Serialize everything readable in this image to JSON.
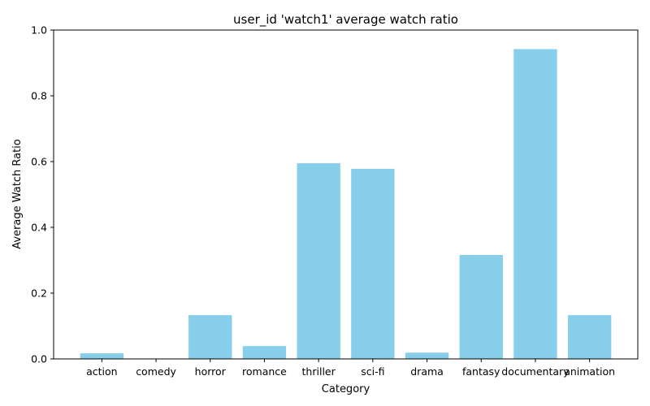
{
  "chart_data": {
    "type": "bar",
    "title": "user_id 'watch1' average watch ratio",
    "xlabel": "Category",
    "ylabel": "Average Watch Ratio",
    "categories": [
      "action",
      "comedy",
      "horror",
      "romance",
      "thriller",
      "sci-fi",
      "drama",
      "fantasy",
      "documentary",
      "animation"
    ],
    "values": [
      0.017,
      0.0,
      0.133,
      0.039,
      0.595,
      0.578,
      0.019,
      0.316,
      0.942,
      0.133
    ],
    "ylim": [
      0,
      1.0
    ],
    "yticks": [
      "0.0",
      "0.2",
      "0.4",
      "0.6",
      "0.8",
      "1.0"
    ],
    "grid": false,
    "bar_color": "#87ceeb"
  }
}
